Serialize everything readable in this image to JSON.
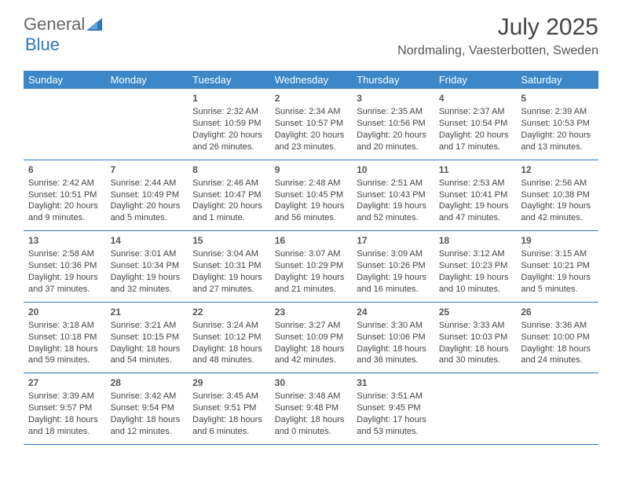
{
  "brand": {
    "part1": "General",
    "part2": "Blue"
  },
  "title": "July 2025",
  "location": "Nordmaling, Vaesterbotten, Sweden",
  "colors": {
    "header_bg": "#3b87c8",
    "header_text": "#ffffff",
    "border": "#2e77b8",
    "text": "#444444",
    "brand_gray": "#666666",
    "brand_blue": "#2e77b8",
    "background": "#ffffff"
  },
  "typography": {
    "title_fontsize": 30,
    "location_fontsize": 16,
    "dayheader_fontsize": 13,
    "daynum_fontsize": 12,
    "cell_fontsize": 11
  },
  "weekdays": [
    "Sunday",
    "Monday",
    "Tuesday",
    "Wednesday",
    "Thursday",
    "Friday",
    "Saturday"
  ],
  "first_weekday_index": 2,
  "days": [
    {
      "n": 1,
      "sunrise": "2:32 AM",
      "sunset": "10:59 PM",
      "daylight": "20 hours and 26 minutes."
    },
    {
      "n": 2,
      "sunrise": "2:34 AM",
      "sunset": "10:57 PM",
      "daylight": "20 hours and 23 minutes."
    },
    {
      "n": 3,
      "sunrise": "2:35 AM",
      "sunset": "10:56 PM",
      "daylight": "20 hours and 20 minutes."
    },
    {
      "n": 4,
      "sunrise": "2:37 AM",
      "sunset": "10:54 PM",
      "daylight": "20 hours and 17 minutes."
    },
    {
      "n": 5,
      "sunrise": "2:39 AM",
      "sunset": "10:53 PM",
      "daylight": "20 hours and 13 minutes."
    },
    {
      "n": 6,
      "sunrise": "2:42 AM",
      "sunset": "10:51 PM",
      "daylight": "20 hours and 9 minutes."
    },
    {
      "n": 7,
      "sunrise": "2:44 AM",
      "sunset": "10:49 PM",
      "daylight": "20 hours and 5 minutes."
    },
    {
      "n": 8,
      "sunrise": "2:46 AM",
      "sunset": "10:47 PM",
      "daylight": "20 hours and 1 minute."
    },
    {
      "n": 9,
      "sunrise": "2:48 AM",
      "sunset": "10:45 PM",
      "daylight": "19 hours and 56 minutes."
    },
    {
      "n": 10,
      "sunrise": "2:51 AM",
      "sunset": "10:43 PM",
      "daylight": "19 hours and 52 minutes."
    },
    {
      "n": 11,
      "sunrise": "2:53 AM",
      "sunset": "10:41 PM",
      "daylight": "19 hours and 47 minutes."
    },
    {
      "n": 12,
      "sunrise": "2:56 AM",
      "sunset": "10:38 PM",
      "daylight": "19 hours and 42 minutes."
    },
    {
      "n": 13,
      "sunrise": "2:58 AM",
      "sunset": "10:36 PM",
      "daylight": "19 hours and 37 minutes."
    },
    {
      "n": 14,
      "sunrise": "3:01 AM",
      "sunset": "10:34 PM",
      "daylight": "19 hours and 32 minutes."
    },
    {
      "n": 15,
      "sunrise": "3:04 AM",
      "sunset": "10:31 PM",
      "daylight": "19 hours and 27 minutes."
    },
    {
      "n": 16,
      "sunrise": "3:07 AM",
      "sunset": "10:29 PM",
      "daylight": "19 hours and 21 minutes."
    },
    {
      "n": 17,
      "sunrise": "3:09 AM",
      "sunset": "10:26 PM",
      "daylight": "19 hours and 16 minutes."
    },
    {
      "n": 18,
      "sunrise": "3:12 AM",
      "sunset": "10:23 PM",
      "daylight": "19 hours and 10 minutes."
    },
    {
      "n": 19,
      "sunrise": "3:15 AM",
      "sunset": "10:21 PM",
      "daylight": "19 hours and 5 minutes."
    },
    {
      "n": 20,
      "sunrise": "3:18 AM",
      "sunset": "10:18 PM",
      "daylight": "18 hours and 59 minutes."
    },
    {
      "n": 21,
      "sunrise": "3:21 AM",
      "sunset": "10:15 PM",
      "daylight": "18 hours and 54 minutes."
    },
    {
      "n": 22,
      "sunrise": "3:24 AM",
      "sunset": "10:12 PM",
      "daylight": "18 hours and 48 minutes."
    },
    {
      "n": 23,
      "sunrise": "3:27 AM",
      "sunset": "10:09 PM",
      "daylight": "18 hours and 42 minutes."
    },
    {
      "n": 24,
      "sunrise": "3:30 AM",
      "sunset": "10:06 PM",
      "daylight": "18 hours and 36 minutes."
    },
    {
      "n": 25,
      "sunrise": "3:33 AM",
      "sunset": "10:03 PM",
      "daylight": "18 hours and 30 minutes."
    },
    {
      "n": 26,
      "sunrise": "3:36 AM",
      "sunset": "10:00 PM",
      "daylight": "18 hours and 24 minutes."
    },
    {
      "n": 27,
      "sunrise": "3:39 AM",
      "sunset": "9:57 PM",
      "daylight": "18 hours and 18 minutes."
    },
    {
      "n": 28,
      "sunrise": "3:42 AM",
      "sunset": "9:54 PM",
      "daylight": "18 hours and 12 minutes."
    },
    {
      "n": 29,
      "sunrise": "3:45 AM",
      "sunset": "9:51 PM",
      "daylight": "18 hours and 6 minutes."
    },
    {
      "n": 30,
      "sunrise": "3:48 AM",
      "sunset": "9:48 PM",
      "daylight": "18 hours and 0 minutes."
    },
    {
      "n": 31,
      "sunrise": "3:51 AM",
      "sunset": "9:45 PM",
      "daylight": "17 hours and 53 minutes."
    }
  ],
  "labels": {
    "sunrise_prefix": "Sunrise: ",
    "sunset_prefix": "Sunset: ",
    "daylight_prefix": "Daylight: "
  }
}
